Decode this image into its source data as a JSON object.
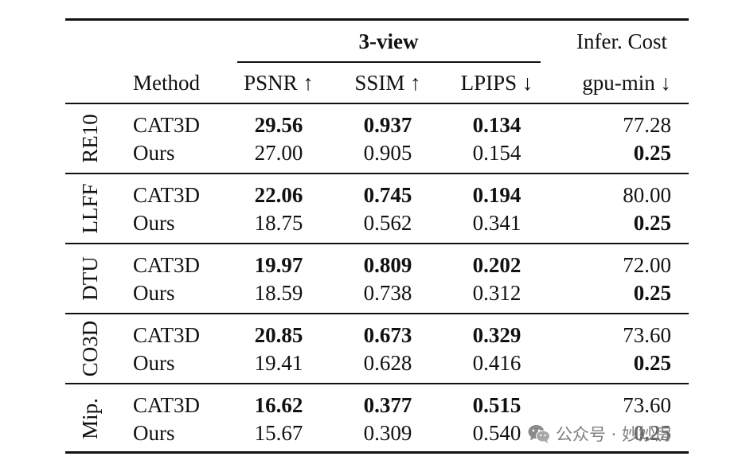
{
  "header": {
    "group_label": "3-view",
    "cost_label": "Infer. Cost",
    "method": "Method",
    "psnr": "PSNR ↑",
    "ssim": "SSIM ↑",
    "lpips": "LPIPS ↓",
    "gpu": "gpu-min ↓"
  },
  "groups": [
    {
      "name": "RE10",
      "rows": [
        {
          "method": "CAT3D",
          "psnr": "29.56",
          "ssim": "0.937",
          "lpips": "0.134",
          "gpu": "77.28",
          "bold": [
            "psnr",
            "ssim",
            "lpips"
          ]
        },
        {
          "method": "Ours",
          "psnr": "27.00",
          "ssim": "0.905",
          "lpips": "0.154",
          "gpu": "0.25",
          "bold": [
            "gpu"
          ]
        }
      ]
    },
    {
      "name": "LLFF",
      "rows": [
        {
          "method": "CAT3D",
          "psnr": "22.06",
          "ssim": "0.745",
          "lpips": "0.194",
          "gpu": "80.00",
          "bold": [
            "psnr",
            "ssim",
            "lpips"
          ]
        },
        {
          "method": "Ours",
          "psnr": "18.75",
          "ssim": "0.562",
          "lpips": "0.341",
          "gpu": "0.25",
          "bold": [
            "gpu"
          ]
        }
      ]
    },
    {
      "name": "DTU",
      "rows": [
        {
          "method": "CAT3D",
          "psnr": "19.97",
          "ssim": "0.809",
          "lpips": "0.202",
          "gpu": "72.00",
          "bold": [
            "psnr",
            "ssim",
            "lpips"
          ]
        },
        {
          "method": "Ours",
          "psnr": "18.59",
          "ssim": "0.738",
          "lpips": "0.312",
          "gpu": "0.25",
          "bold": [
            "gpu"
          ]
        }
      ]
    },
    {
      "name": "CO3D",
      "rows": [
        {
          "method": "CAT3D",
          "psnr": "20.85",
          "ssim": "0.673",
          "lpips": "0.329",
          "gpu": "73.60",
          "bold": [
            "psnr",
            "ssim",
            "lpips"
          ]
        },
        {
          "method": "Ours",
          "psnr": "19.41",
          "ssim": "0.628",
          "lpips": "0.416",
          "gpu": "0.25",
          "bold": [
            "gpu"
          ]
        }
      ]
    },
    {
      "name": "Mip.",
      "rows": [
        {
          "method": "CAT3D",
          "psnr": "16.62",
          "ssim": "0.377",
          "lpips": "0.515",
          "gpu": "73.60",
          "bold": [
            "psnr",
            "ssim",
            "lpips"
          ]
        },
        {
          "method": "Ours",
          "psnr": "15.67",
          "ssim": "0.309",
          "lpips": "0.540",
          "gpu": "0.25",
          "bold": [
            "gpu"
          ]
        }
      ]
    }
  ],
  "watermark": {
    "text": "公众号 · 妙妙房",
    "icon": "wechat-icon"
  }
}
